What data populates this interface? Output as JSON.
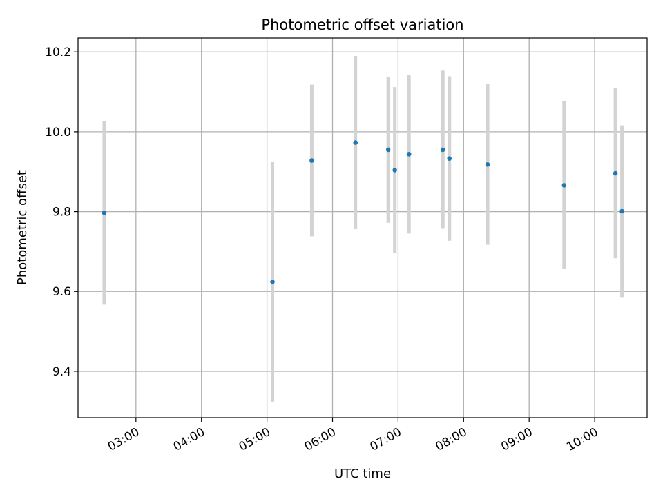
{
  "chart_data": {
    "type": "scatter",
    "title": "Photometric offset variation",
    "xlabel": "UTC time",
    "ylabel": "Photometric offset",
    "x_ticks": [
      "03:00",
      "04:00",
      "05:00",
      "06:00",
      "07:00",
      "08:00",
      "09:00",
      "10:00"
    ],
    "y_ticks": [
      "9.4",
      "9.6",
      "9.8",
      "10.0",
      "10.2"
    ],
    "xlim": [
      "02:07",
      "10:48"
    ],
    "ylim": [
      9.284,
      10.235
    ],
    "grid": true,
    "points": [
      {
        "x": "02:31",
        "y": 9.797,
        "err": 0.23
      },
      {
        "x": "05:05",
        "y": 9.624,
        "err": 0.3
      },
      {
        "x": "05:41",
        "y": 9.928,
        "err": 0.19
      },
      {
        "x": "06:21",
        "y": 9.973,
        "err": 0.217
      },
      {
        "x": "06:51",
        "y": 9.955,
        "err": 0.183
      },
      {
        "x": "06:57",
        "y": 9.904,
        "err": 0.208
      },
      {
        "x": "07:10",
        "y": 9.944,
        "err": 0.199
      },
      {
        "x": "07:41",
        "y": 9.955,
        "err": 0.198
      },
      {
        "x": "07:47",
        "y": 9.933,
        "err": 0.206
      },
      {
        "x": "08:22",
        "y": 9.918,
        "err": 0.201
      },
      {
        "x": "09:32",
        "y": 9.866,
        "err": 0.21
      },
      {
        "x": "10:19",
        "y": 9.896,
        "err": 0.213
      },
      {
        "x": "10:25",
        "y": 9.801,
        "err": 0.215
      }
    ],
    "colors": {
      "point": "#1f77b4",
      "errorbar": "#d3d3d3",
      "grid": "#b0b0b0",
      "axes": "#000000"
    }
  }
}
